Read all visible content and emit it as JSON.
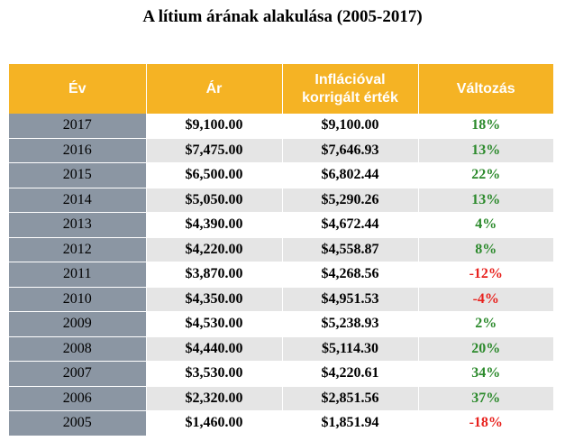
{
  "title": "A lítium árának alakulása (2005-2017)",
  "colors": {
    "header_bg": "#f5b324",
    "year_col_bg": "#8b96a3",
    "stripe_bg": "#e5e5e5",
    "positive": "#2c8a2c",
    "negative": "#e8211d"
  },
  "table": {
    "headers": [
      "Év",
      "Ár",
      "Inflációval korrigált érték",
      "Változás"
    ],
    "rows": [
      {
        "year": "2017",
        "price": "$9,100.00",
        "adjusted": "$9,100.00",
        "change": "18%",
        "sign": "pos"
      },
      {
        "year": "2016",
        "price": "$7,475.00",
        "adjusted": "$7,646.93",
        "change": "13%",
        "sign": "pos"
      },
      {
        "year": "2015",
        "price": "$6,500.00",
        "adjusted": "$6,802.44",
        "change": "22%",
        "sign": "pos"
      },
      {
        "year": "2014",
        "price": "$5,050.00",
        "adjusted": "$5,290.26",
        "change": "13%",
        "sign": "pos"
      },
      {
        "year": "2013",
        "price": "$4,390.00",
        "adjusted": "$4,672.44",
        "change": "4%",
        "sign": "pos"
      },
      {
        "year": "2012",
        "price": "$4,220.00",
        "adjusted": "$4,558.87",
        "change": "8%",
        "sign": "pos"
      },
      {
        "year": "2011",
        "price": "$3,870.00",
        "adjusted": "$4,268.56",
        "change": "-12%",
        "sign": "neg"
      },
      {
        "year": "2010",
        "price": "$4,350.00",
        "adjusted": "$4,951.53",
        "change": "-4%",
        "sign": "neg"
      },
      {
        "year": "2009",
        "price": "$4,530.00",
        "adjusted": "$5,238.93",
        "change": "2%",
        "sign": "pos"
      },
      {
        "year": "2008",
        "price": "$4,440.00",
        "adjusted": "$5,114.30",
        "change": "20%",
        "sign": "pos"
      },
      {
        "year": "2007",
        "price": "$3,530.00",
        "adjusted": "$4,220.61",
        "change": "34%",
        "sign": "pos"
      },
      {
        "year": "2006",
        "price": "$2,320.00",
        "adjusted": "$2,851.56",
        "change": "37%",
        "sign": "pos"
      },
      {
        "year": "2005",
        "price": "$1,460.00",
        "adjusted": "$1,851.94",
        "change": "-18%",
        "sign": "neg"
      }
    ]
  }
}
